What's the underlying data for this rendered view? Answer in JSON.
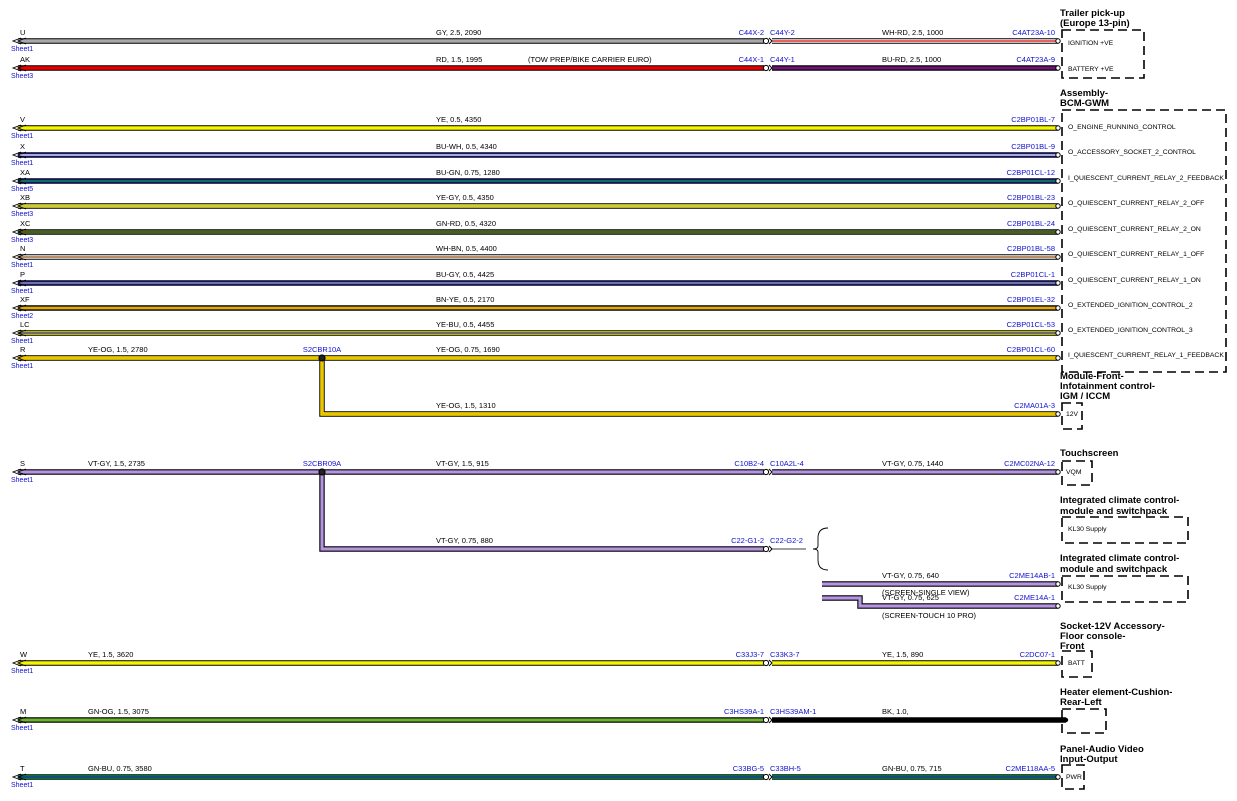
{
  "components": [
    {
      "title": [
        "Trailer pick-up",
        "(Europe 13-pin)"
      ],
      "signals": [
        "IGNITION +VE",
        "BATTERY +VE"
      ]
    },
    {
      "title": [
        "Assembly-",
        "BCM-GWM"
      ],
      "signals": [
        "O_ENGINE_RUNNING_CONTROL",
        "O_ACCESSORY_SOCKET_2_CONTROL",
        "I_QUIESCENT_CURRENT_RELAY_2_FEEDBACK",
        "O_QUIESCENT_CURRENT_RELAY_2_OFF",
        "O_QUIESCENT_CURRENT_RELAY_2_ON",
        "O_QUIESCENT_CURRENT_RELAY_1_OFF",
        "O_QUIESCENT_CURRENT_RELAY_1_ON",
        "O_EXTENDED_IGNITION_CONTROL_2",
        "O_EXTENDED_IGNITION_CONTROL_3",
        "I_QUIESCENT_CURRENT_RELAY_1_FEEDBACK"
      ]
    },
    {
      "title": [
        "Module-Front-",
        "Infotainment control-",
        "IGM / ICCM"
      ],
      "signals": [
        "12V"
      ]
    },
    {
      "title": [
        "Touchscreen"
      ],
      "signals": [
        "VQM"
      ]
    },
    {
      "title": [
        "Integrated climate control-",
        "module and switchpack"
      ],
      "signals": [
        "KL30 Supply"
      ]
    },
    {
      "title": [
        "Integrated climate control-",
        "module and switchpack"
      ],
      "signals": [
        "KL30 Supply"
      ]
    },
    {
      "title": [
        "Socket-12V Accessory-",
        "Floor console-",
        "Front"
      ],
      "signals": [
        "BATT"
      ]
    },
    {
      "title": [
        "Heater element-Cushion-",
        "Rear-Left"
      ],
      "signals": []
    },
    {
      "title": [
        "Panel-Audio Video",
        "Input-Output"
      ],
      "signals": [
        "PWR"
      ]
    }
  ],
  "wires": [
    {
      "letter": "U",
      "sheet": "Sheet1",
      "label": "GY, 2.5, 2090",
      "pinA": "C44X-2",
      "pinB": "C44Y-2",
      "label2": "WH-RD, 2.5, 1000",
      "end": "C4AT23A-10",
      "colors": [
        "#a8a8a8",
        "#a8a8a8"
      ],
      "colors2": [
        "#ffffff",
        "#e00000"
      ]
    },
    {
      "letter": "AK",
      "sheet": "Sheet3",
      "label": "RD, 1.5, 1995",
      "note": "(TOW PREP/BIKE CARRIER EURO)",
      "pinA": "C44X-1",
      "pinB": "C44Y-1",
      "label2": "BU-RD, 2.5, 1000",
      "end": "C4AT23A-9",
      "colors": [
        "#e80000",
        "#e80000"
      ],
      "colors2": [
        "#1a1aa0",
        "#e00000"
      ]
    },
    {
      "letter": "V",
      "sheet": "Sheet1",
      "label": "YE, 0.5, 4350",
      "end": "C2BP01BL-7",
      "colors": [
        "#f5f500",
        "#f5f500"
      ]
    },
    {
      "letter": "X",
      "sheet": "Sheet1",
      "label": "BU-WH, 0.5, 4340",
      "end": "C2BP01BL-9",
      "colors": [
        "#1a1aa0",
        "#ffffff"
      ]
    },
    {
      "letter": "XA",
      "sheet": "Sheet5",
      "label": "BU-GN, 0.75, 1280",
      "end": "C2BP01CL-12",
      "colors": [
        "#1a1aa0",
        "#00a040"
      ]
    },
    {
      "letter": "XB",
      "sheet": "Sheet3",
      "label": "YE-GY, 0.5, 4350",
      "end": "C2BP01BL-23",
      "colors": [
        "#f5f500",
        "#a8a8a8"
      ]
    },
    {
      "letter": "XC",
      "sheet": "Sheet3",
      "label": "GN-RD, 0.5, 4320",
      "end": "C2BP01BL-24",
      "colors": [
        "#00a040",
        "#e00000"
      ]
    },
    {
      "letter": "N",
      "sheet": "Sheet1",
      "label": "WH-BN, 0.5, 4400",
      "end": "C2BP01BL-58",
      "colors": [
        "#ffffff",
        "#8a4a10"
      ]
    },
    {
      "letter": "P",
      "sheet": "Sheet1",
      "label": "BU-GY, 0.5, 4425",
      "end": "C2BP01CL-1",
      "colors": [
        "#1a1aa0",
        "#a8a8a8"
      ]
    },
    {
      "letter": "XF",
      "sheet": "Sheet2",
      "label": "BN-YE, 0.5, 2170",
      "end": "C2BP01EL-32",
      "colors": [
        "#8a4a10",
        "#f5f500"
      ]
    },
    {
      "letter": "LC",
      "sheet": "Sheet1",
      "label": "YE-BU, 0.5, 4455",
      "end": "C2BP01CL-53",
      "colors": [
        "#f5f500",
        "#1a1aa0"
      ]
    },
    {
      "letter": "R",
      "sheet": "Sheet1",
      "label": "YE-OG, 1.5, 2780",
      "splice": "S2CBR10A",
      "label2": "YE-OG, 0.75, 1690",
      "end": "C2BP01CL-60",
      "colors": [
        "#f5f500",
        "#ff9900"
      ]
    },
    {
      "branch": true,
      "label": "YE-OG, 1.5, 1310",
      "end": "C2MA01A-3",
      "colors": [
        "#f5f500",
        "#ff9900"
      ]
    },
    {
      "letter": "S",
      "sheet": "Sheet1",
      "label": "VT-GY, 1.5, 2735",
      "splice": "S2CBR09A",
      "label2": "VT-GY, 1.5, 915",
      "pinA": "C10B2-4",
      "pinB": "C10A2L-4",
      "label3": "VT-GY, 0.75, 1440",
      "end": "C2MC02NA-12",
      "colors": [
        "#a070e0",
        "#b8b8b8"
      ]
    },
    {
      "branch": true,
      "label": "VT-GY, 0.75, 880",
      "pinA": "C22-G1-2",
      "pinB": "C22-G2-2",
      "colors": [
        "#a070e0",
        "#b8b8b8"
      ]
    },
    {
      "branch": true,
      "label": "VT-GY, 0.75, 640",
      "note": "(SCREEN-SINGLE VIEW)",
      "end": "C2ME14AB-1",
      "colors": [
        "#a070e0",
        "#b8b8b8"
      ]
    },
    {
      "branch": true,
      "label": "VT-GY, 0.75, 625",
      "note": "(SCREEN-TOUCH 10 PRO)",
      "end": "C2ME14A-1",
      "colors": [
        "#a070e0",
        "#b8b8b8"
      ]
    },
    {
      "letter": "W",
      "sheet": "Sheet1",
      "label": "YE, 1.5, 3620",
      "pinA": "C33J3-7",
      "pinB": "C33K3-7",
      "label2": "YE, 1.5, 890",
      "end": "C2DC07-1",
      "colors": [
        "#f5f500",
        "#f5f500"
      ]
    },
    {
      "letter": "M",
      "sheet": "Sheet1",
      "label": "GN-OG, 1.5, 3075",
      "pinA": "C3HS39A-1",
      "pinB": "C3HS39AM-1",
      "label2": "BK, 1.0,",
      "colors": [
        "#00a040",
        "#ff9900"
      ],
      "colors2": [
        "#000000",
        "#000000"
      ]
    },
    {
      "letter": "T",
      "sheet": "Sheet1",
      "label": "GN-BU, 0.75, 3580",
      "pinA": "C33BG-5",
      "pinB": "C33BH-5",
      "label2": "GN-BU, 0.75, 715",
      "end": "C2ME118AA-5",
      "colors": [
        "#00a040",
        "#1a1aa0"
      ]
    }
  ]
}
